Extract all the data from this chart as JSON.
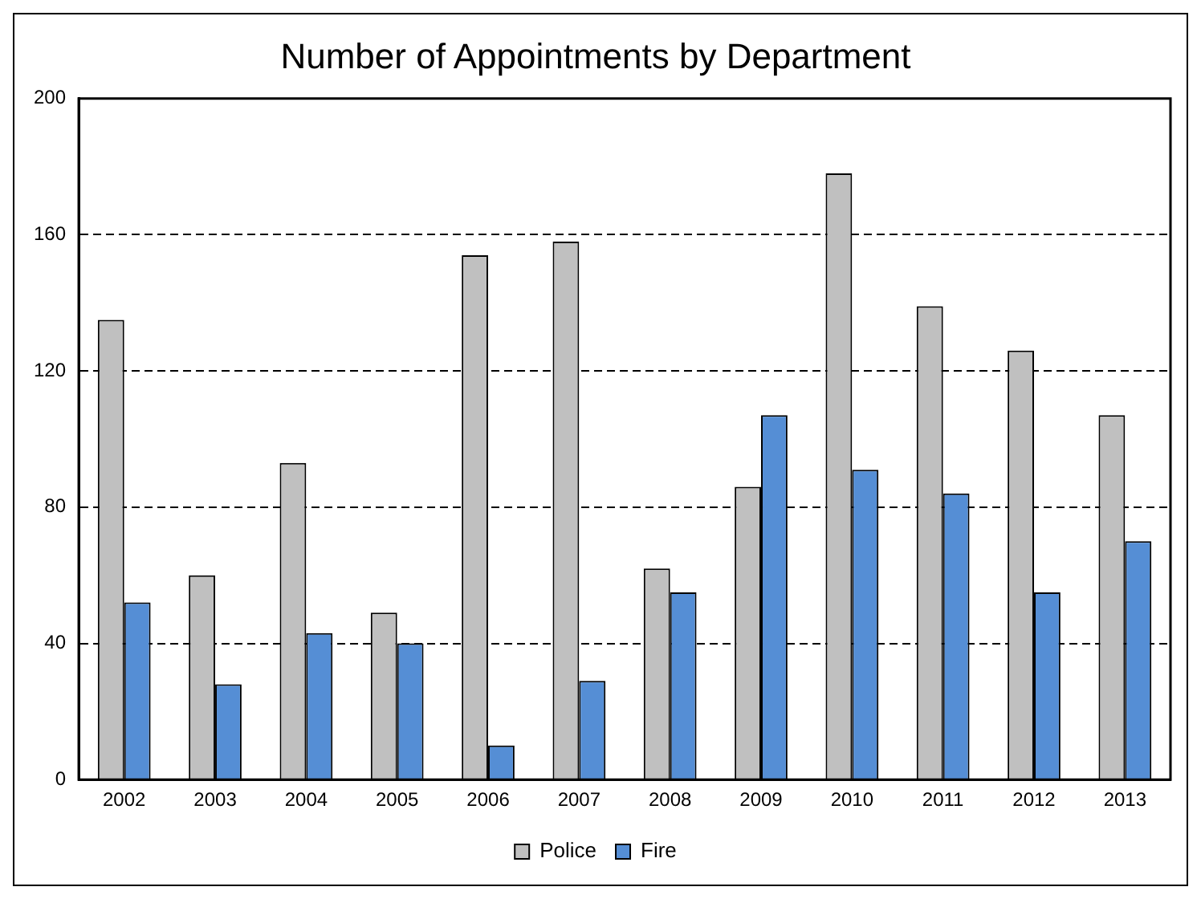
{
  "chart_data": {
    "type": "bar",
    "title": "Number of Appointments by Department",
    "categories": [
      "2002",
      "2003",
      "2004",
      "2005",
      "2006",
      "2007",
      "2008",
      "2009",
      "2010",
      "2011",
      "2012",
      "2013"
    ],
    "series": [
      {
        "name": "Police",
        "color": "#c0c0c0",
        "values": [
          135,
          60,
          93,
          49,
          154,
          158,
          62,
          86,
          178,
          139,
          126,
          107
        ]
      },
      {
        "name": "Fire",
        "color": "#558ed5",
        "values": [
          52,
          28,
          43,
          40,
          10,
          29,
          55,
          107,
          91,
          84,
          55,
          70
        ]
      }
    ],
    "ylim": [
      0,
      200
    ],
    "yticks": [
      0,
      40,
      80,
      120,
      160,
      200
    ],
    "grid": "y",
    "line_style": "dashed",
    "legend": "bottom"
  }
}
